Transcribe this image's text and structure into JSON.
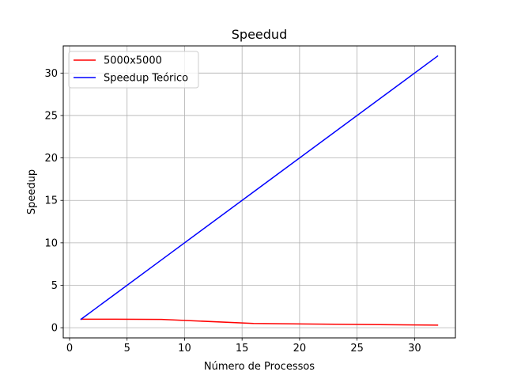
{
  "chart_data": {
    "type": "line",
    "title": "Speedud",
    "xlabel": "Número de Processos",
    "ylabel": "Speedup",
    "xlim": [
      -0.55,
      33.55
    ],
    "ylim": [
      -1.2,
      33.2
    ],
    "xticks": [
      0,
      5,
      10,
      15,
      20,
      25,
      30
    ],
    "yticks": [
      0,
      5,
      10,
      15,
      20,
      25,
      30
    ],
    "xtick_labels": [
      "0",
      "5",
      "10",
      "15",
      "20",
      "25",
      "30"
    ],
    "ytick_labels": [
      "0",
      "5",
      "10",
      "15",
      "20",
      "25",
      "30"
    ],
    "grid": true,
    "legend_position": "top-left",
    "series": [
      {
        "name": "5000x5000",
        "color": "#ff0000",
        "x": [
          1,
          2,
          4,
          8,
          16,
          32
        ],
        "y": [
          1.0,
          1.0,
          1.0,
          0.98,
          0.5,
          0.3
        ]
      },
      {
        "name": "Speedup Teórico",
        "color": "#0000ff",
        "x": [
          1,
          2,
          4,
          8,
          16,
          32
        ],
        "y": [
          1,
          2,
          4,
          8,
          16,
          32
        ]
      }
    ]
  }
}
